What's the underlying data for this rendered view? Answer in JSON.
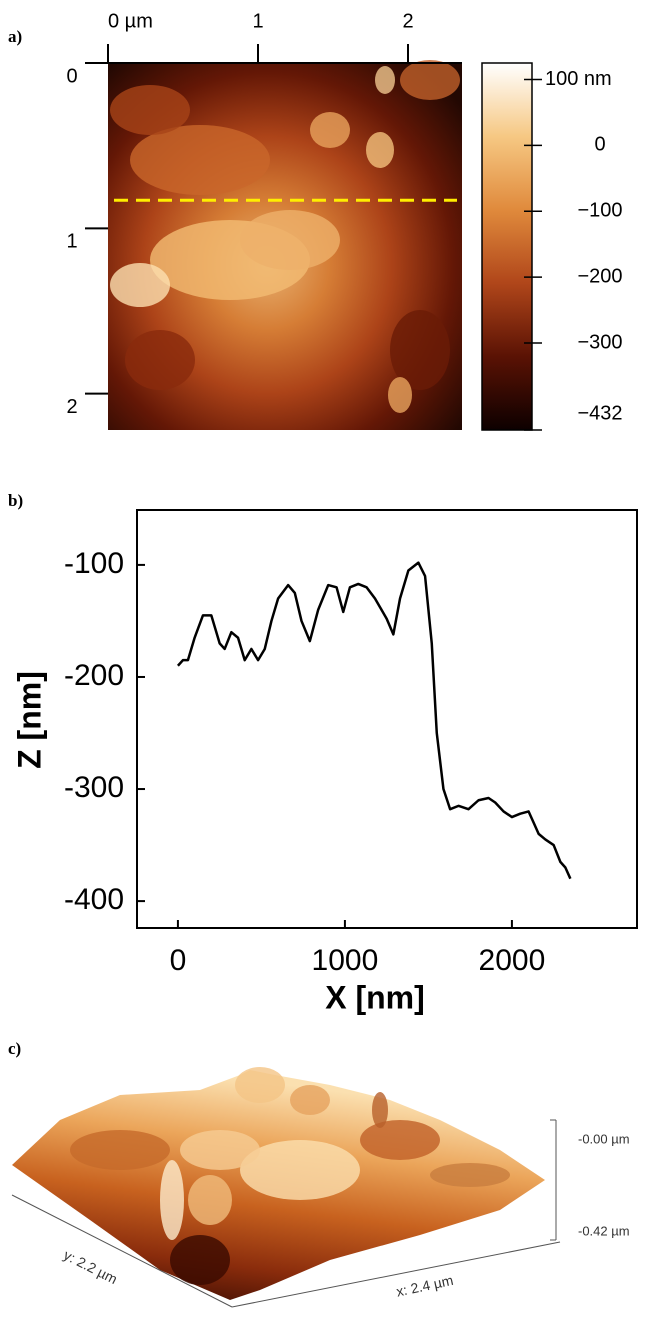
{
  "chart_data": [
    {
      "type": "image",
      "label": "a)",
      "xticks": [
        {
          "value": 0,
          "label": "0 µm"
        },
        1,
        2
      ],
      "yticks": [
        0,
        1,
        2
      ],
      "xlim": [
        0,
        2.36
      ],
      "ylim": [
        0,
        2.22
      ],
      "profile_y": 0.83,
      "profile_color": "#ffee00",
      "colormap": [
        "#0d0000",
        "#5a1204",
        "#b0461a",
        "#e08a3c",
        "#f6c883",
        "#ffffff"
      ],
      "colorbar": {
        "lim": [
          -432,
          125
        ],
        "ticks": [
          {
            "value": 100,
            "label": "100 nm"
          },
          0,
          {
            "value": -100,
            "label": "−100"
          },
          {
            "value": -200,
            "label": "−200"
          },
          {
            "value": -300,
            "label": "−300"
          },
          {
            "value": -432,
            "label": "−432"
          }
        ]
      }
    },
    {
      "type": "line",
      "label": "b)",
      "xlabel": "X [nm]",
      "ylabel": "Z [nm]",
      "color": "#000000",
      "xlim": [
        -245,
        2749
      ],
      "ylim": [
        -424,
        -51
      ],
      "xticks": [
        0,
        1000,
        2000
      ],
      "yticks": [
        -100,
        -200,
        -300,
        -400
      ],
      "x": [
        0,
        30,
        60,
        100,
        150,
        200,
        250,
        280,
        320,
        360,
        400,
        440,
        480,
        520,
        560,
        600,
        660,
        700,
        740,
        790,
        840,
        900,
        950,
        990,
        1030,
        1080,
        1130,
        1180,
        1250,
        1290,
        1330,
        1380,
        1440,
        1480,
        1520,
        1550,
        1590,
        1630,
        1680,
        1740,
        1800,
        1860,
        1900,
        1950,
        2000,
        2050,
        2100,
        2130,
        2160,
        2200,
        2250,
        2290,
        2320,
        2350
      ],
      "values": [
        -190,
        -185,
        -185,
        -165,
        -145,
        -145,
        -170,
        -175,
        -160,
        -165,
        -185,
        -175,
        -185,
        -175,
        -150,
        -130,
        -118,
        -125,
        -150,
        -168,
        -140,
        -118,
        -120,
        -142,
        -120,
        -117,
        -120,
        -130,
        -148,
        -162,
        -130,
        -105,
        -98,
        -110,
        -170,
        -250,
        -300,
        -318,
        -315,
        -318,
        -310,
        -308,
        -312,
        -320,
        -325,
        -322,
        -320,
        -330,
        -340,
        -345,
        -350,
        -365,
        -370,
        -380
      ]
    },
    {
      "type": "surface",
      "label": "c)",
      "x_label": "x: 2.4 µm",
      "y_label": "y: 2.2 µm",
      "zlim": [
        -0.42,
        0
      ],
      "zticks": [
        {
          "value": 0,
          "label": "-0.00 µm"
        },
        {
          "value": -0.42,
          "label": "-0.42 µm"
        }
      ],
      "colormap": [
        "#2a0500",
        "#8a2c0c",
        "#c8621f",
        "#eba55a",
        "#fbe0b0"
      ]
    }
  ]
}
